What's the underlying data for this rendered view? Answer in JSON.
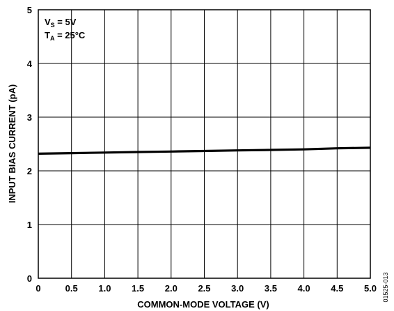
{
  "chart_data": {
    "type": "line",
    "xlabel": "COMMON-MODE VOLTAGE (V)",
    "ylabel": "INPUT BIAS CURRENT (pA)",
    "xlim": [
      0,
      5.0
    ],
    "ylim": [
      0,
      5
    ],
    "xticks": [
      "0",
      "0.5",
      "1.0",
      "1.5",
      "2.0",
      "2.5",
      "3.0",
      "3.5",
      "4.0",
      "4.5",
      "5.0"
    ],
    "yticks": [
      "0",
      "1",
      "2",
      "3",
      "4",
      "5"
    ],
    "grid": true,
    "series": [
      {
        "x": [
          0,
          0.5,
          1.0,
          1.5,
          2.0,
          2.5,
          3.0,
          3.5,
          4.0,
          4.5,
          5.0
        ],
        "y": [
          2.32,
          2.33,
          2.34,
          2.35,
          2.36,
          2.37,
          2.38,
          2.39,
          2.4,
          2.42,
          2.43
        ]
      }
    ],
    "annotations": {
      "vs": {
        "main": "V",
        "sub": "S",
        "rest": " = 5V"
      },
      "ta": {
        "main": "T",
        "sub": "A",
        "rest": " = 25°C"
      }
    },
    "figure_id": "01525-013"
  }
}
